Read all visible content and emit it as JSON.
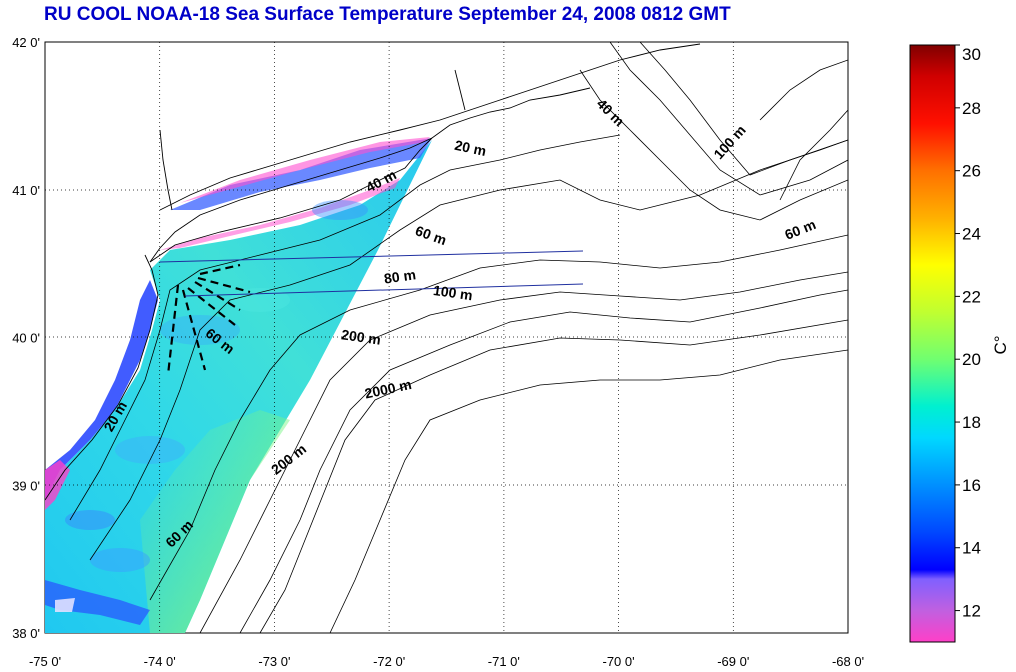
{
  "title": "RU COOL  NOAA-18 Sea Surface Temperature September 24, 2008 0812 GMT",
  "map": {
    "lon_range": [
      -75,
      -68
    ],
    "lat_range": [
      38,
      42
    ],
    "lon_ticks": [
      {
        "value": -75,
        "label": "-75 0'"
      },
      {
        "value": -74,
        "label": "-74 0'"
      },
      {
        "value": -73,
        "label": "-73 0'"
      },
      {
        "value": -72,
        "label": "-72 0'"
      },
      {
        "value": -71,
        "label": "-71 0'"
      },
      {
        "value": -70,
        "label": "-70 0'"
      },
      {
        "value": -69,
        "label": "-69 0'"
      },
      {
        "value": -68,
        "label": "-68 0'"
      }
    ],
    "lat_ticks": [
      {
        "value": 38,
        "label": "38 0'"
      },
      {
        "value": 39,
        "label": "39 0'"
      },
      {
        "value": 40,
        "label": "40 0'"
      },
      {
        "value": 41,
        "label": "41 0'"
      },
      {
        "value": 42,
        "label": "42 0'"
      }
    ],
    "grid": "dotted",
    "contour_labels": [
      {
        "text": "20 m",
        "lon": -71.3,
        "lat": 41.25,
        "rotate": 12
      },
      {
        "text": "40 m",
        "lon": -72.05,
        "lat": 41.03,
        "rotate": -28
      },
      {
        "text": "40 m",
        "lon": -70.1,
        "lat": 41.5,
        "rotate": 45
      },
      {
        "text": "100 m",
        "lon": -69.0,
        "lat": 41.3,
        "rotate": -48
      },
      {
        "text": "60 m",
        "lon": -71.65,
        "lat": 40.66,
        "rotate": 20
      },
      {
        "text": "60 m",
        "lon": -68.4,
        "lat": 40.7,
        "rotate": -22
      },
      {
        "text": "80 m",
        "lon": -71.9,
        "lat": 40.38,
        "rotate": -8
      },
      {
        "text": "100 m",
        "lon": -71.45,
        "lat": 40.27,
        "rotate": 8
      },
      {
        "text": "200 m",
        "lon": -72.25,
        "lat": 39.97,
        "rotate": 8
      },
      {
        "text": "60 m",
        "lon": -73.5,
        "lat": 39.95,
        "rotate": 38
      },
      {
        "text": "2000 m",
        "lon": -72.0,
        "lat": 39.62,
        "rotate": -12
      },
      {
        "text": "20 m",
        "lon": -74.35,
        "lat": 39.45,
        "rotate": -60
      },
      {
        "text": "200 m",
        "lon": -72.85,
        "lat": 39.15,
        "rotate": -38
      },
      {
        "text": "60 m",
        "lon": -73.8,
        "lat": 38.65,
        "rotate": -45
      }
    ]
  },
  "colorbar": {
    "min": 11,
    "max": 30,
    "ticks": [
      12,
      14,
      16,
      18,
      20,
      22,
      24,
      26,
      28,
      30
    ],
    "unit_label": "C°",
    "stops": [
      {
        "value": 11,
        "color": "#ff3fc8"
      },
      {
        "value": 12,
        "color": "#c060e0"
      },
      {
        "value": 13,
        "color": "#8060ff"
      },
      {
        "value": 13.3,
        "color": "#0000ff"
      },
      {
        "value": 14.5,
        "color": "#0048ff"
      },
      {
        "value": 16,
        "color": "#0090ff"
      },
      {
        "value": 17.5,
        "color": "#00d8ff"
      },
      {
        "value": 18.5,
        "color": "#00f0d0"
      },
      {
        "value": 20,
        "color": "#70ff70"
      },
      {
        "value": 21.5,
        "color": "#c0ff30"
      },
      {
        "value": 23,
        "color": "#ffff00"
      },
      {
        "value": 24.5,
        "color": "#ffb000"
      },
      {
        "value": 26,
        "color": "#ff7000"
      },
      {
        "value": 27.5,
        "color": "#ff1000"
      },
      {
        "value": 29,
        "color": "#d00000"
      },
      {
        "value": 30,
        "color": "#800000"
      }
    ]
  },
  "colors": {
    "title": "#0000c8",
    "sst_main": "#2ad8e8",
    "sst_warm": "#80f090",
    "sst_cold": "#2a40ff"
  }
}
